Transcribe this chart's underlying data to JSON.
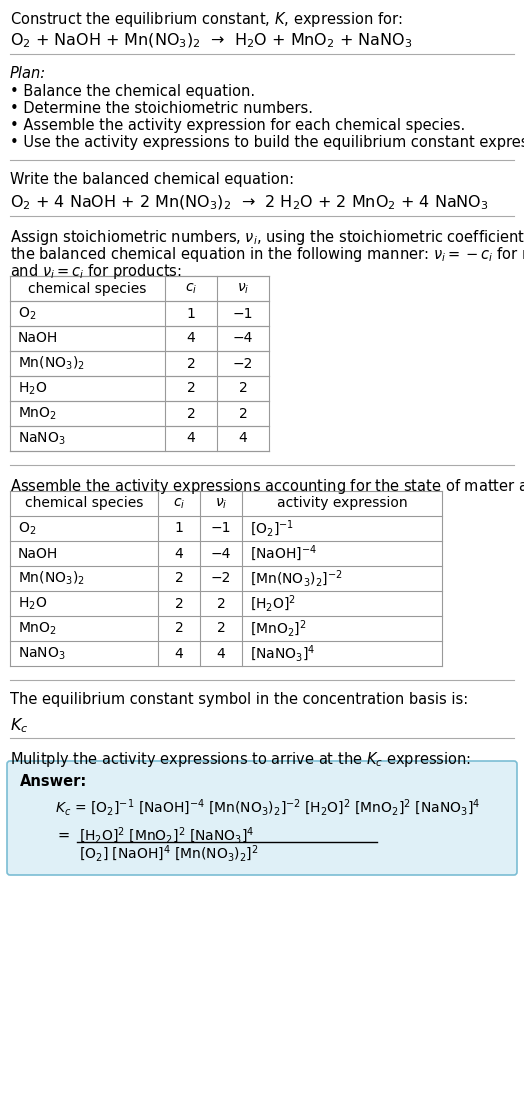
{
  "bg_color": "#ffffff",
  "text_color": "#000000",
  "reaction_unbalanced": "O$_2$ + NaOH + Mn(NO$_3$)$_2$  →  H$_2$O + MnO$_2$ + NaNO$_3$",
  "plan_title": "Plan:",
  "plan_items": [
    "• Balance the chemical equation.",
    "• Determine the stoichiometric numbers.",
    "• Assemble the activity expression for each chemical species.",
    "• Use the activity expressions to build the equilibrium constant expression."
  ],
  "balanced_label": "Write the balanced chemical equation:",
  "reaction_balanced": "O$_2$ + 4 NaOH + 2 Mn(NO$_3$)$_2$  →  2 H$_2$O + 2 MnO$_2$ + 4 NaNO$_3$",
  "stoich_label_line1": "Assign stoichiometric numbers, $\\nu_i$, using the stoichiometric coefficients, $c_i$, from",
  "stoich_label_line2": "the balanced chemical equation in the following manner: $\\nu_i = -c_i$ for reactants",
  "stoich_label_line3": "and $\\nu_i = c_i$ for products:",
  "table1_headers": [
    "chemical species",
    "$c_i$",
    "$\\nu_i$"
  ],
  "table1_data": [
    [
      "O$_2$",
      "1",
      "−1"
    ],
    [
      "NaOH",
      "4",
      "−4"
    ],
    [
      "Mn(NO$_3$)$_2$",
      "2",
      "−2"
    ],
    [
      "H$_2$O",
      "2",
      "2"
    ],
    [
      "MnO$_2$",
      "2",
      "2"
    ],
    [
      "NaNO$_3$",
      "4",
      "4"
    ]
  ],
  "activity_label": "Assemble the activity expressions accounting for the state of matter and $\\nu_i$:",
  "table2_headers": [
    "chemical species",
    "$c_i$",
    "$\\nu_i$",
    "activity expression"
  ],
  "table2_data": [
    [
      "O$_2$",
      "1",
      "−1",
      "[O$_2$]$^{-1}$"
    ],
    [
      "NaOH",
      "4",
      "−4",
      "[NaOH]$^{-4}$"
    ],
    [
      "Mn(NO$_3$)$_2$",
      "2",
      "−2",
      "[Mn(NO$_3$)$_2$]$^{-2}$"
    ],
    [
      "H$_2$O",
      "2",
      "2",
      "[H$_2$O]$^2$"
    ],
    [
      "MnO$_2$",
      "2",
      "2",
      "[MnO$_2$]$^2$"
    ],
    [
      "NaNO$_3$",
      "4",
      "4",
      "[NaNO$_3$]$^4$"
    ]
  ],
  "kc_label": "The equilibrium constant symbol in the concentration basis is:",
  "kc_symbol": "$K_c$",
  "multiply_label": "Mulitply the activity expressions to arrive at the $K_c$ expression:",
  "answer_label": "Answer:",
  "answer_box_color": "#dff0f7",
  "answer_box_edge": "#7bbdd4",
  "answer_line1": "$K_c$ = [O$_2$]$^{-1}$ [NaOH]$^{-4}$ [Mn(NO$_3$)$_2$]$^{-2}$ [H$_2$O]$^2$ [MnO$_2$]$^2$ [NaNO$_3$]$^4$",
  "answer_num": "[H$_2$O]$^2$ [MnO$_2$]$^2$ [NaNO$_3$]$^4$",
  "answer_den": "[O$_2$] [NaOH]$^4$ [Mn(NO$_3$)$_2$]$^2$"
}
